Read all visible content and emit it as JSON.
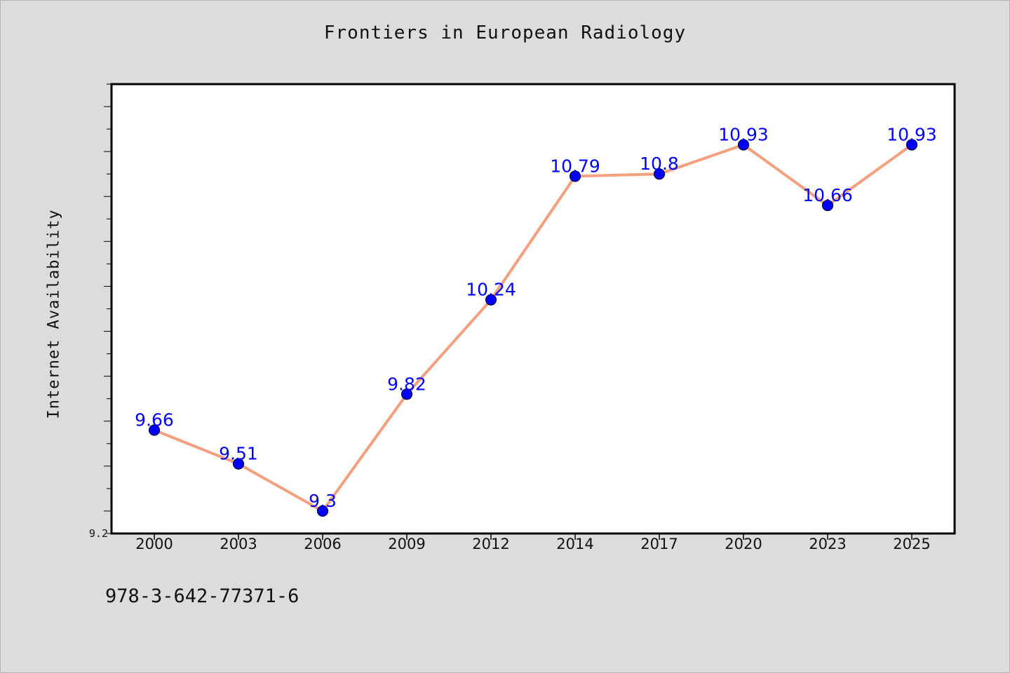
{
  "chart_data": {
    "type": "line",
    "title": "Frontiers in European Radiology",
    "xlabel": "",
    "ylabel": "Internet Availability",
    "categories": [
      "2000",
      "2003",
      "2006",
      "2009",
      "2012",
      "2014",
      "2017",
      "2020",
      "2023",
      "2025"
    ],
    "series": [
      {
        "values": [
          9.66,
          9.51,
          9.3,
          9.82,
          10.24,
          10.79,
          10.8,
          10.93,
          10.66,
          10.93
        ],
        "data_labels": [
          "9.66",
          "9.51",
          "9.3",
          "9.82",
          "10.24",
          "10.79",
          "10.8",
          "10.93",
          "10.66",
          "10.93"
        ]
      }
    ],
    "ylim": [
      9.2,
      11.2
    ],
    "y_tick_labels": [
      "9.2"
    ],
    "grid": false,
    "legend": "none",
    "colors": {
      "line": "#f4a07e",
      "marker": "#0000ff",
      "data_label": "#0000ff",
      "background": "#dcdcdc",
      "plot_area": "#ffffff"
    },
    "footnote": "978-3-642-77371-6"
  }
}
